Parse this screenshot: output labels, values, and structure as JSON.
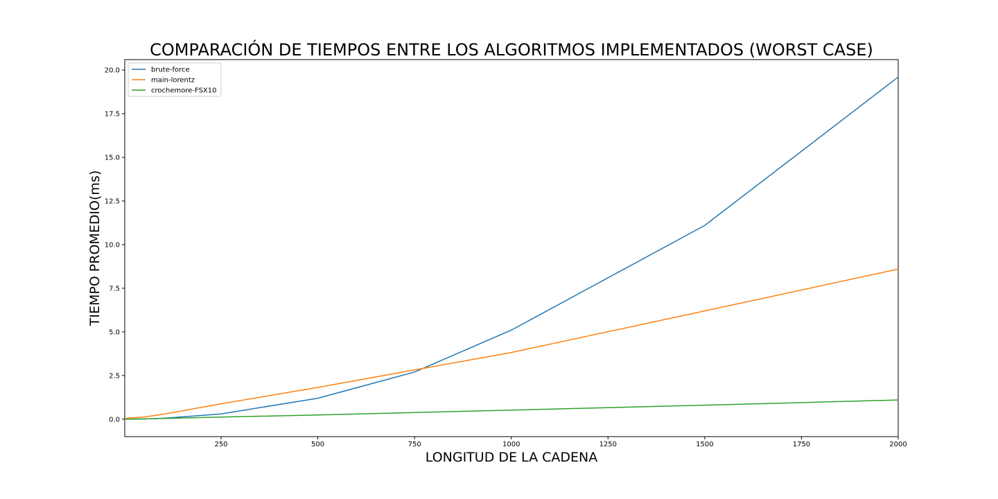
{
  "chart_data": {
    "type": "line",
    "title": "COMPARACIÓN DE TIEMPOS ENTRE LOS ALGORITMOS IMPLEMENTADOS (WORST CASE)",
    "xlabel": "LONGITUD DE LA CADENA",
    "ylabel": "TIEMPO PROMEDIO(ms)",
    "xlim": [
      1,
      2000
    ],
    "ylim": [
      -1,
      20.6
    ],
    "x_ticks": [
      250,
      500,
      750,
      1000,
      1250,
      1500,
      1750,
      2000
    ],
    "y_ticks": [
      0,
      2.5,
      5,
      7.5,
      10,
      12.5,
      15,
      17.5,
      20
    ],
    "grid": false,
    "legend_position": "top-left",
    "x": [
      1,
      10,
      50,
      100,
      250,
      500,
      750,
      1000,
      1500,
      2000
    ],
    "series": [
      {
        "name": "brute-force",
        "color": "#1f77b4",
        "values": [
          0.0,
          0.0,
          0.01,
          0.05,
          0.3,
          1.2,
          2.7,
          5.1,
          11.1,
          19.6
        ]
      },
      {
        "name": "main-lorentz",
        "color": "#ff7f0e",
        "values": [
          0.03,
          0.06,
          0.12,
          0.28,
          0.88,
          1.82,
          2.82,
          3.82,
          6.2,
          8.6
        ]
      },
      {
        "name": "crochemore-FSX10",
        "color": "#2ca02c",
        "values": [
          0.0,
          0.0,
          0.01,
          0.04,
          0.12,
          0.24,
          0.38,
          0.52,
          0.8,
          1.1
        ]
      }
    ]
  }
}
